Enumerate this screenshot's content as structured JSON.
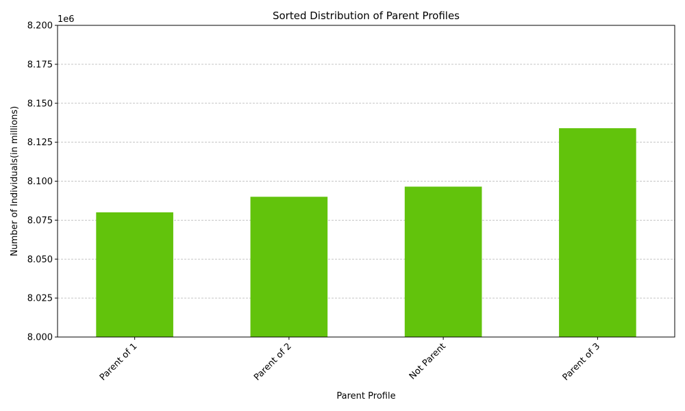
{
  "chart_data": {
    "type": "bar",
    "title": "Sorted Distribution of Parent Profiles",
    "xlabel": "Parent Profile",
    "ylabel": "Number of Individuals(in millions)",
    "offset_label": "1e6",
    "categories": [
      "Parent of 1",
      "Parent of 2",
      "Not Parent",
      "Parent of 3"
    ],
    "values": [
      8080000,
      8090000,
      8096500,
      8134000
    ],
    "ylim": [
      8000000,
      8200000
    ],
    "yticks": [
      8000000,
      8025000,
      8050000,
      8075000,
      8100000,
      8125000,
      8150000,
      8175000,
      8200000
    ],
    "ytick_labels": [
      "8.000",
      "8.025",
      "8.050",
      "8.075",
      "8.100",
      "8.125",
      "8.150",
      "8.175",
      "8.200"
    ],
    "grid": "y-dashed",
    "bar_color": "#62c30c",
    "legend": "none"
  }
}
